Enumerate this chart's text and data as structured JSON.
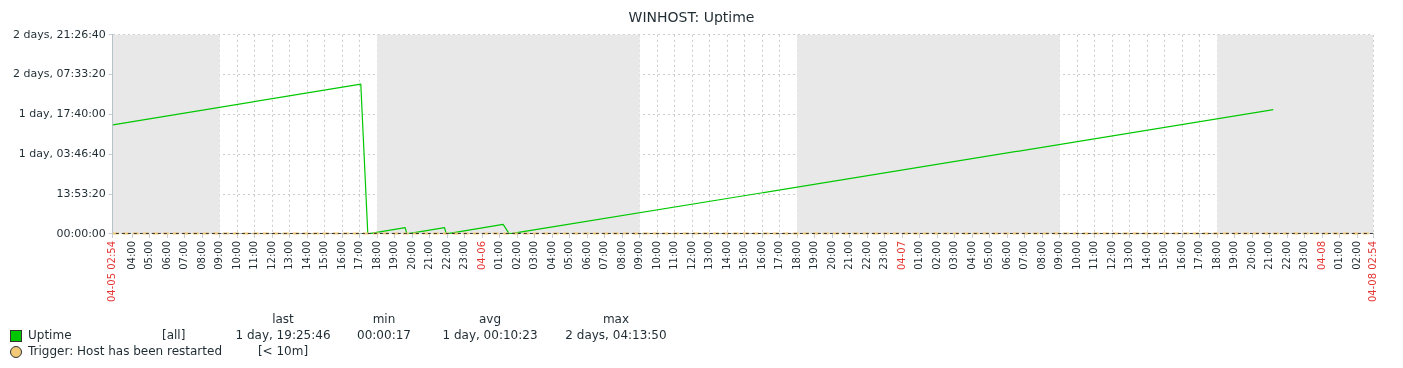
{
  "chart_data": {
    "type": "line",
    "title": "WINHOST: Uptime",
    "xlim": [
      "--04-05T02:54",
      "--04-08T02:54"
    ],
    "xticks": [
      {
        "value": "--04-05T02:54",
        "label": "04-05 02:54"
      },
      {
        "value": "--04-05T04:00",
        "label": "04:00"
      },
      {
        "value": "--04-05T05:00",
        "label": "05:00"
      },
      {
        "value": "--04-05T06:00",
        "label": "06:00"
      },
      {
        "value": "--04-05T07:00",
        "label": "07:00"
      },
      {
        "value": "--04-05T08:00",
        "label": "08:00"
      },
      {
        "value": "--04-05T09:00",
        "label": "09:00"
      },
      {
        "value": "--04-05T10:00",
        "label": "10:00"
      },
      {
        "value": "--04-05T11:00",
        "label": "11:00"
      },
      {
        "value": "--04-05T12:00",
        "label": "12:00"
      },
      {
        "value": "--04-05T13:00",
        "label": "13:00"
      },
      {
        "value": "--04-05T14:00",
        "label": "14:00"
      },
      {
        "value": "--04-05T15:00",
        "label": "15:00"
      },
      {
        "value": "--04-05T16:00",
        "label": "16:00"
      },
      {
        "value": "--04-05T17:00",
        "label": "17:00"
      },
      {
        "value": "--04-05T18:00",
        "label": "18:00"
      },
      {
        "value": "--04-05T19:00",
        "label": "19:00"
      },
      {
        "value": "--04-05T20:00",
        "label": "20:00"
      },
      {
        "value": "--04-05T21:00",
        "label": "21:00"
      },
      {
        "value": "--04-05T22:00",
        "label": "22:00"
      },
      {
        "value": "--04-05T23:00",
        "label": "23:00"
      },
      {
        "value": "--04-06T00:00",
        "label": "04-06"
      },
      {
        "value": "--04-06T01:00",
        "label": "01:00"
      },
      {
        "value": "--04-06T02:00",
        "label": "02:00"
      },
      {
        "value": "--04-06T03:00",
        "label": "03:00"
      },
      {
        "value": "--04-06T04:00",
        "label": "04:00"
      },
      {
        "value": "--04-06T05:00",
        "label": "05:00"
      },
      {
        "value": "--04-06T06:00",
        "label": "06:00"
      },
      {
        "value": "--04-06T07:00",
        "label": "07:00"
      },
      {
        "value": "--04-06T08:00",
        "label": "08:00"
      },
      {
        "value": "--04-06T09:00",
        "label": "09:00"
      },
      {
        "value": "--04-06T10:00",
        "label": "10:00"
      },
      {
        "value": "--04-06T11:00",
        "label": "11:00"
      },
      {
        "value": "--04-06T12:00",
        "label": "12:00"
      },
      {
        "value": "--04-06T13:00",
        "label": "13:00"
      },
      {
        "value": "--04-06T14:00",
        "label": "14:00"
      },
      {
        "value": "--04-06T15:00",
        "label": "15:00"
      },
      {
        "value": "--04-06T16:00",
        "label": "16:00"
      },
      {
        "value": "--04-06T17:00",
        "label": "17:00"
      },
      {
        "value": "--04-06T18:00",
        "label": "18:00"
      },
      {
        "value": "--04-06T19:00",
        "label": "19:00"
      },
      {
        "value": "--04-06T20:00",
        "label": "20:00"
      },
      {
        "value": "--04-06T21:00",
        "label": "21:00"
      },
      {
        "value": "--04-06T22:00",
        "label": "22:00"
      },
      {
        "value": "--04-06T23:00",
        "label": "23:00"
      },
      {
        "value": "--04-07T00:00",
        "label": "04-07"
      },
      {
        "value": "--04-07T01:00",
        "label": "01:00"
      },
      {
        "value": "--04-07T02:00",
        "label": "02:00"
      },
      {
        "value": "--04-07T03:00",
        "label": "03:00"
      },
      {
        "value": "--04-07T04:00",
        "label": "04:00"
      },
      {
        "value": "--04-07T05:00",
        "label": "05:00"
      },
      {
        "value": "--04-07T06:00",
        "label": "06:00"
      },
      {
        "value": "--04-07T07:00",
        "label": "07:00"
      },
      {
        "value": "--04-07T08:00",
        "label": "08:00"
      },
      {
        "value": "--04-07T09:00",
        "label": "09:00"
      },
      {
        "value": "--04-07T10:00",
        "label": "10:00"
      },
      {
        "value": "--04-07T11:00",
        "label": "11:00"
      },
      {
        "value": "--04-07T12:00",
        "label": "12:00"
      },
      {
        "value": "--04-07T13:00",
        "label": "13:00"
      },
      {
        "value": "--04-07T14:00",
        "label": "14:00"
      },
      {
        "value": "--04-07T15:00",
        "label": "15:00"
      },
      {
        "value": "--04-07T16:00",
        "label": "16:00"
      },
      {
        "value": "--04-07T17:00",
        "label": "17:00"
      },
      {
        "value": "--04-07T18:00",
        "label": "18:00"
      },
      {
        "value": "--04-07T19:00",
        "label": "19:00"
      },
      {
        "value": "--04-07T20:00",
        "label": "20:00"
      },
      {
        "value": "--04-07T21:00",
        "label": "21:00"
      },
      {
        "value": "--04-07T22:00",
        "label": "22:00"
      },
      {
        "value": "--04-07T23:00",
        "label": "23:00"
      },
      {
        "value": "--04-08T00:00",
        "label": "04-08"
      },
      {
        "value": "--04-08T01:00",
        "label": "01:00"
      },
      {
        "value": "--04-08T02:00",
        "label": "02:00"
      },
      {
        "value": "--04-08T02:54",
        "label": "04-08 02:54"
      }
    ],
    "ylim": [
      0,
      250000
    ],
    "yticks": [
      {
        "value": 0,
        "label": "00:00:00"
      },
      {
        "value": 50000,
        "label": "13:53:20"
      },
      {
        "value": 100000,
        "label": "1 day, 03:46:40"
      },
      {
        "value": 150000,
        "label": "1 day, 17:40:00"
      },
      {
        "value": 200000,
        "label": "2 days, 07:33:20"
      },
      {
        "value": 250000,
        "label": "2 days, 21:26:40"
      }
    ],
    "series": [
      {
        "name": "Uptime",
        "color": "#00c800",
        "x": [
          "--04-05T02:54",
          "--04-05T17:04",
          "--04-05T17:28",
          "--04-05T19:36",
          "--04-05T19:42",
          "--04-05T21:51",
          "--04-05T21:57",
          "--04-06T01:12",
          "--04-06T01:33",
          "--04-07T21:12"
        ],
        "values": [
          137000,
          188000,
          0,
          8000,
          0,
          8000,
          0,
          12000,
          0,
          156000
        ]
      }
    ],
    "bands": [
      {
        "axis": "x",
        "from": "--04-05T02:54",
        "to": "--04-05T09:00",
        "color": "#e8e8e8"
      },
      {
        "axis": "x",
        "from": "--04-05T18:00",
        "to": "--04-06T09:00",
        "color": "#e8e8e8"
      },
      {
        "axis": "x",
        "from": "--04-06T18:00",
        "to": "--04-07T09:00",
        "color": "#e8e8e8"
      },
      {
        "axis": "x",
        "from": "--04-07T18:00",
        "to": "--04-08T02:54",
        "color": "#e8e8e8"
      }
    ],
    "ref_lines": [
      {
        "axis": "y",
        "value": 600,
        "label": "Trigger: Host has been restarted",
        "color": "#f0c878",
        "line_style": "dashed"
      }
    ],
    "annotations": [
      "[all]",
      "last",
      "min",
      "avg",
      "max",
      "1 day, 19:25:46",
      "00:00:17",
      "1 day, 00:10:23",
      "2 days, 04:13:50",
      "[< 10m]"
    ],
    "grid": true,
    "legend": "bottom left",
    "marker": "none",
    "line_style": "solid"
  }
}
